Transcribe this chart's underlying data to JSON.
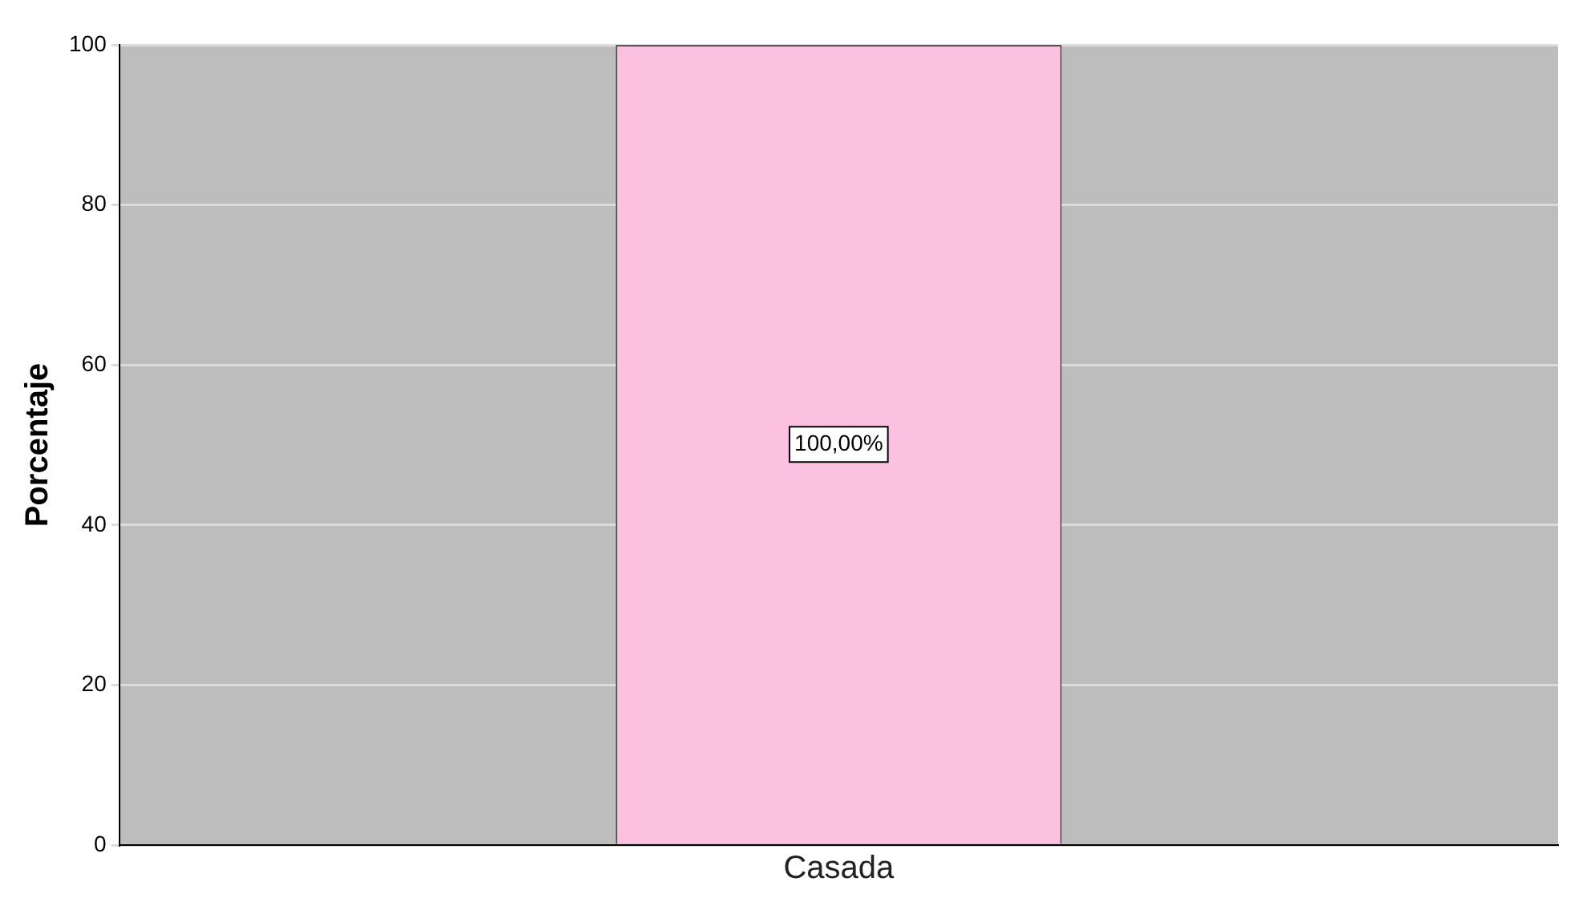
{
  "chart_data": {
    "type": "bar",
    "ylabel": "Porcentaje",
    "categories": [
      "Casada"
    ],
    "values": [
      100
    ],
    "value_labels": [
      "100,00%"
    ],
    "color": "#fcc0e0",
    "ylim": [
      0,
      100
    ],
    "yticks": [
      0,
      20,
      40,
      60,
      80,
      100
    ],
    "grid": "y",
    "legend": false
  }
}
